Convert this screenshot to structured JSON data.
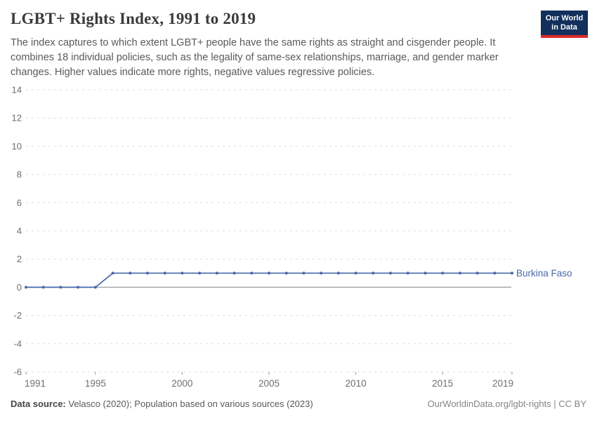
{
  "logo": {
    "line1": "Our World",
    "line2": "in Data"
  },
  "footer": {
    "source_label": "Data source:",
    "source_text": " Velasco (2020); Population based on various sources (2023)",
    "credit": "OurWorldinData.org/lgbt-rights | CC BY"
  },
  "colors": {
    "accent": "#4868a8",
    "grid": "#dddddd",
    "zero_line": "#a8a8a8",
    "axis_text": "#6e6e6e",
    "tick_mark": "#999999",
    "title": "#3b3b3b",
    "subtitle": "#5a5a5a",
    "logo_bg": "#12305b",
    "logo_stripe": "#d92b26"
  },
  "chart_data": {
    "type": "line",
    "title": "LGBT+ Rights Index, 1991 to 2019",
    "subtitle": "The index captures to which extent LGBT+ people have the same rights as straight and cisgender people. It combines 18 individual policies, such as the legality of same-sex relationships, marriage, and gender marker changes. Higher values indicate more rights, negative values regressive policies.",
    "x": [
      1991,
      1992,
      1993,
      1994,
      1995,
      1996,
      1997,
      1998,
      1999,
      2000,
      2001,
      2002,
      2003,
      2004,
      2005,
      2006,
      2007,
      2008,
      2009,
      2010,
      2011,
      2012,
      2013,
      2014,
      2015,
      2016,
      2017,
      2018,
      2019
    ],
    "series": [
      {
        "name": "Burkina Faso",
        "color": "#4868a8",
        "values": [
          0,
          0,
          0,
          0,
          0,
          1,
          1,
          1,
          1,
          1,
          1,
          1,
          1,
          1,
          1,
          1,
          1,
          1,
          1,
          1,
          1,
          1,
          1,
          1,
          1,
          1,
          1,
          1,
          1
        ]
      }
    ],
    "xticks": [
      1991,
      1995,
      2000,
      2005,
      2010,
      2015,
      2019
    ],
    "yticks": [
      14,
      12,
      10,
      8,
      6,
      4,
      2,
      0,
      -2,
      -4,
      -6
    ],
    "xlim": [
      1991,
      2019
    ],
    "ylim": [
      -6,
      14
    ],
    "grid": "dashed",
    "legend_position": "line-end-label",
    "markers": true
  }
}
